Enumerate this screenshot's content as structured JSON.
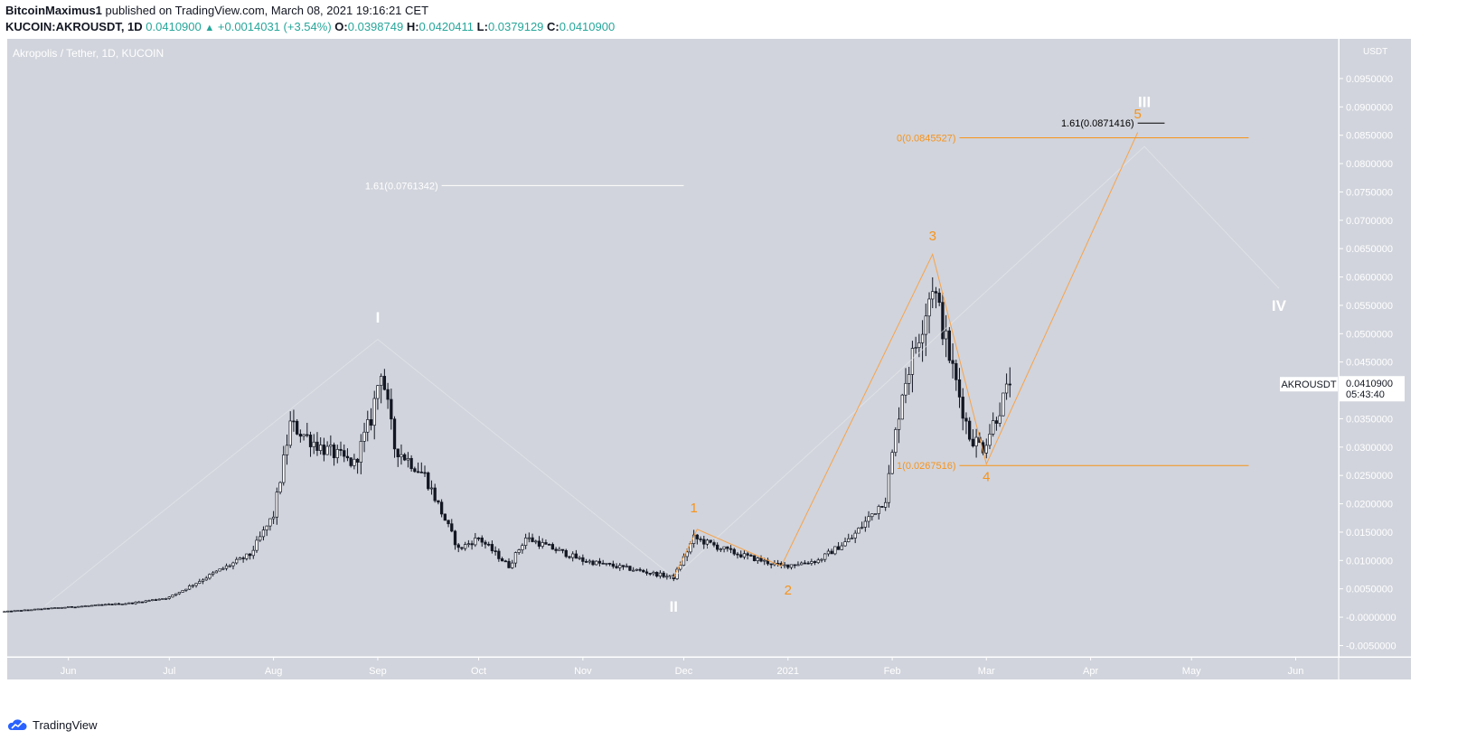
{
  "header": {
    "publisher": "BitcoinMaximus1",
    "published_text": "published on TradingView.com, March 08, 2021 19:16:21 CET",
    "symbol": "KUCOIN:AKROUSDT, 1D",
    "last": "0.0410900",
    "change": "+0.0014031 (+3.54%)",
    "o_label": "O:",
    "o_value": "0.0398749",
    "h_label": "H:",
    "h_value": "0.0420411",
    "l_label": "L:",
    "l_value": "0.0379129",
    "c_label": "C:",
    "c_value": "0.0410900"
  },
  "footer": {
    "brand": "TradingView"
  },
  "chart_data": {
    "type": "candlestick",
    "title": "Akropolis / Tether, 1D, KUCOIN",
    "currency": "USDT",
    "y_range": [
      -0.007,
      0.102
    ],
    "x_range": [
      "2020-05-13",
      "2021-06-10"
    ],
    "y_ticks": [
      "0.0950000",
      "0.0900000",
      "0.0850000",
      "0.0800000",
      "0.0750000",
      "0.0700000",
      "0.0650000",
      "0.0600000",
      "0.0550000",
      "0.0500000",
      "0.0450000",
      "0.0400000",
      "0.0350000",
      "0.0300000",
      "0.0250000",
      "0.0200000",
      "0.0150000",
      "0.0100000",
      "0.0050000",
      "-0.0000000",
      "-0.0050000"
    ],
    "y_tick_values": [
      0.095,
      0.09,
      0.085,
      0.08,
      0.075,
      0.07,
      0.065,
      0.06,
      0.055,
      0.05,
      0.045,
      0.04,
      0.035,
      0.03,
      0.025,
      0.02,
      0.015,
      0.01,
      0.005,
      0,
      -0.005
    ],
    "x_ticks": [
      {
        "label": "Jun",
        "date": "2020-06-01"
      },
      {
        "label": "Jul",
        "date": "2020-07-01"
      },
      {
        "label": "Aug",
        "date": "2020-08-01"
      },
      {
        "label": "Sep",
        "date": "2020-09-01"
      },
      {
        "label": "Oct",
        "date": "2020-10-01"
      },
      {
        "label": "Nov",
        "date": "2020-11-01"
      },
      {
        "label": "Dec",
        "date": "2020-12-01"
      },
      {
        "label": "2021",
        "date": "2021-01-01"
      },
      {
        "label": "Feb",
        "date": "2021-02-01"
      },
      {
        "label": "Mar",
        "date": "2021-03-01"
      },
      {
        "label": "Apr",
        "date": "2021-04-01"
      },
      {
        "label": "May",
        "date": "2021-05-01"
      },
      {
        "label": "Jun",
        "date": "2021-06-01"
      }
    ],
    "price_keypoints": [
      {
        "date": "2020-05-13",
        "price": 0.001
      },
      {
        "date": "2020-06-01",
        "price": 0.0018
      },
      {
        "date": "2020-06-20",
        "price": 0.0025
      },
      {
        "date": "2020-07-01",
        "price": 0.0035
      },
      {
        "date": "2020-07-15",
        "price": 0.008
      },
      {
        "date": "2020-07-25",
        "price": 0.011
      },
      {
        "date": "2020-08-01",
        "price": 0.018
      },
      {
        "date": "2020-08-06",
        "price": 0.034
      },
      {
        "date": "2020-08-15",
        "price": 0.03
      },
      {
        "date": "2020-08-25",
        "price": 0.027
      },
      {
        "date": "2020-08-30",
        "price": 0.035
      },
      {
        "date": "2020-09-02",
        "price": 0.044
      },
      {
        "date": "2020-09-06",
        "price": 0.03
      },
      {
        "date": "2020-09-15",
        "price": 0.025
      },
      {
        "date": "2020-09-25",
        "price": 0.012
      },
      {
        "date": "2020-10-01",
        "price": 0.014
      },
      {
        "date": "2020-10-10",
        "price": 0.009
      },
      {
        "date": "2020-10-15",
        "price": 0.014
      },
      {
        "date": "2020-11-01",
        "price": 0.01
      },
      {
        "date": "2020-11-15",
        "price": 0.0085
      },
      {
        "date": "2020-11-28",
        "price": 0.007
      },
      {
        "date": "2020-12-04",
        "price": 0.014
      },
      {
        "date": "2020-12-15",
        "price": 0.0115
      },
      {
        "date": "2020-12-30",
        "price": 0.009
      },
      {
        "date": "2021-01-10",
        "price": 0.01
      },
      {
        "date": "2021-01-20",
        "price": 0.014
      },
      {
        "date": "2021-01-30",
        "price": 0.021
      },
      {
        "date": "2021-02-04",
        "price": 0.04
      },
      {
        "date": "2021-02-10",
        "price": 0.052
      },
      {
        "date": "2021-02-13",
        "price": 0.059
      },
      {
        "date": "2021-02-18",
        "price": 0.046
      },
      {
        "date": "2021-02-24",
        "price": 0.032
      },
      {
        "date": "2021-02-28",
        "price": 0.03
      },
      {
        "date": "2021-03-08",
        "price": 0.0411
      }
    ],
    "annotations": {
      "wave_labels": [
        {
          "text": "I",
          "date": "2020-09-01",
          "price": 0.052,
          "color": "#ffffff"
        },
        {
          "text": "II",
          "date": "2020-11-28",
          "price": 0.001,
          "color": "#ffffff"
        },
        {
          "text": "III",
          "date": "2021-04-17",
          "price": 0.09,
          "color": "#ffffff"
        },
        {
          "text": "IV",
          "date": "2021-05-27",
          "price": 0.054,
          "color": "#ffffff"
        },
        {
          "text": "1",
          "date": "2020-12-04",
          "price": 0.0185,
          "color": "#f7931a"
        },
        {
          "text": "2",
          "date": "2021-01-01",
          "price": 0.004,
          "color": "#f7931a"
        },
        {
          "text": "3",
          "date": "2021-02-13",
          "price": 0.0665,
          "color": "#f7931a"
        },
        {
          "text": "4",
          "date": "2021-03-01",
          "price": 0.024,
          "color": "#f7931a"
        },
        {
          "text": "5",
          "date": "2021-04-15",
          "price": 0.088,
          "color": "#f7931a"
        }
      ],
      "wave_path_orange": [
        {
          "date": "2020-11-28",
          "price": 0.007
        },
        {
          "date": "2020-12-05",
          "price": 0.0155
        },
        {
          "date": "2020-12-30",
          "price": 0.009
        },
        {
          "date": "2021-02-13",
          "price": 0.064
        },
        {
          "date": "2021-03-01",
          "price": 0.027
        },
        {
          "date": "2021-04-15",
          "price": 0.0855
        }
      ],
      "wave_path_white": [
        {
          "date": "2020-05-25",
          "price": 0.002
        },
        {
          "date": "2020-09-01",
          "price": 0.049
        },
        {
          "date": "2020-11-28",
          "price": 0.007
        },
        {
          "date": "2021-04-17",
          "price": 0.083
        },
        {
          "date": "2021-05-27",
          "price": 0.058
        }
      ],
      "levels": [
        {
          "label": "1.61(0.0761342)",
          "price": 0.0761342,
          "from": "2020-09-20",
          "to": "2020-12-01",
          "color": "#ffffff"
        },
        {
          "label": "1.61(0.0871416)",
          "price": 0.0871416,
          "from": "2021-04-15",
          "to": "2021-04-23",
          "color": "#000000"
        },
        {
          "label": "0(0.0845527)",
          "price": 0.0845527,
          "from": "2021-02-21",
          "to": "2021-05-18",
          "color": "#f7931a"
        },
        {
          "label": "1(0.0267516)",
          "price": 0.0267516,
          "from": "2021-02-21",
          "to": "2021-05-18",
          "color": "#f7931a"
        }
      ],
      "price_tag": {
        "symbol": "AKROUSDT",
        "price": "0.0410900",
        "countdown": "05:43:40",
        "value": 0.04109
      }
    }
  }
}
